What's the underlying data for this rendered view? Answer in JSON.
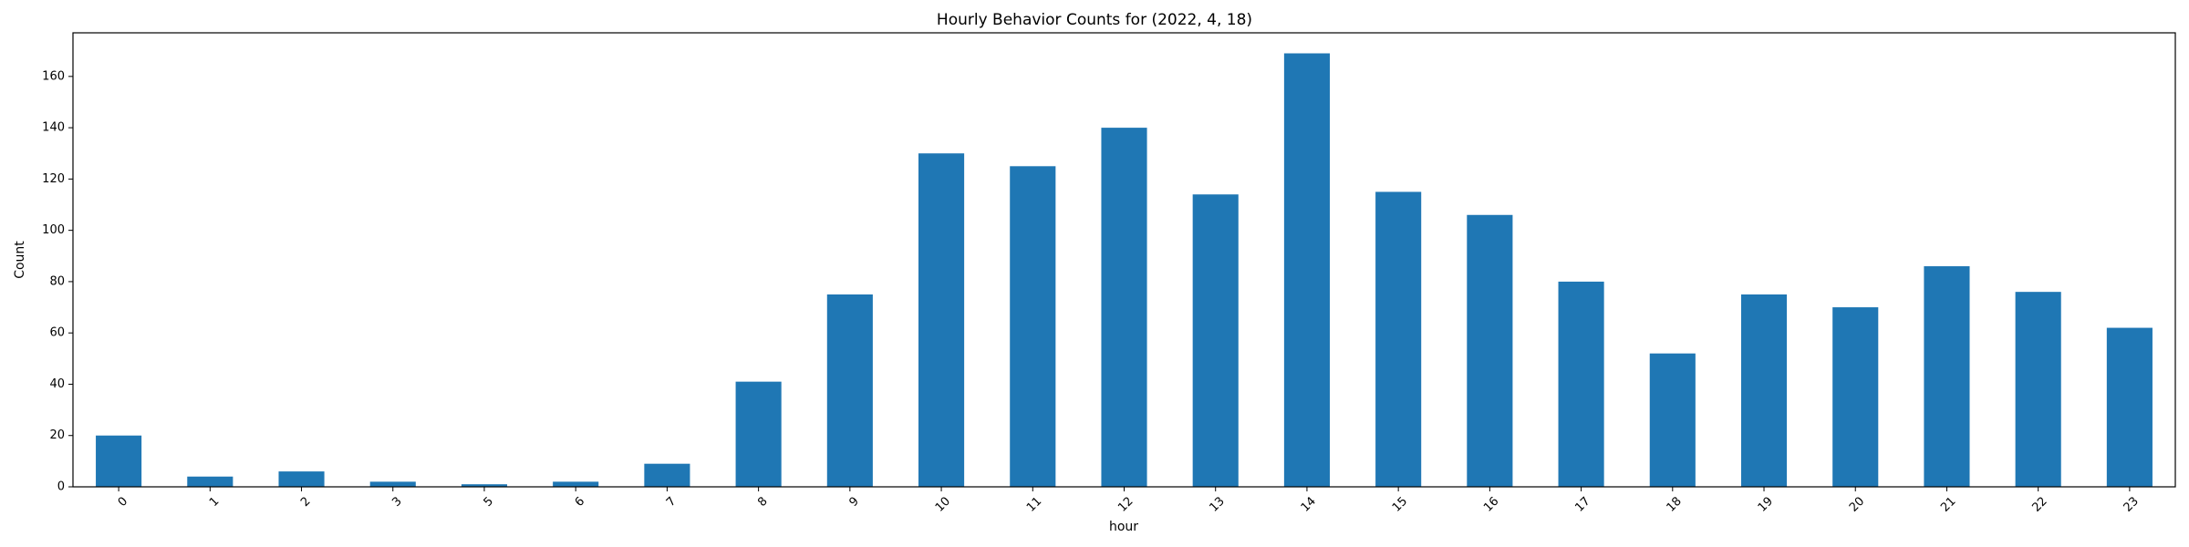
{
  "chart_data": {
    "type": "bar",
    "title": "Hourly Behavior Counts for (2022, 4, 18)",
    "xlabel": "hour",
    "ylabel": "Count",
    "categories": [
      "0",
      "1",
      "2",
      "3",
      "5",
      "6",
      "7",
      "8",
      "9",
      "10",
      "11",
      "12",
      "13",
      "14",
      "15",
      "16",
      "17",
      "18",
      "19",
      "20",
      "21",
      "22",
      "23"
    ],
    "values": [
      20,
      4,
      6,
      2,
      1,
      2,
      9,
      41,
      75,
      130,
      125,
      140,
      114,
      169,
      115,
      106,
      80,
      52,
      75,
      70,
      86,
      76,
      62
    ],
    "ylim": [
      0,
      177
    ],
    "yticks": [
      0,
      20,
      40,
      60,
      80,
      100,
      120,
      140,
      160
    ],
    "grid": false,
    "legend": "none",
    "bar_color": "#1f77b4"
  }
}
